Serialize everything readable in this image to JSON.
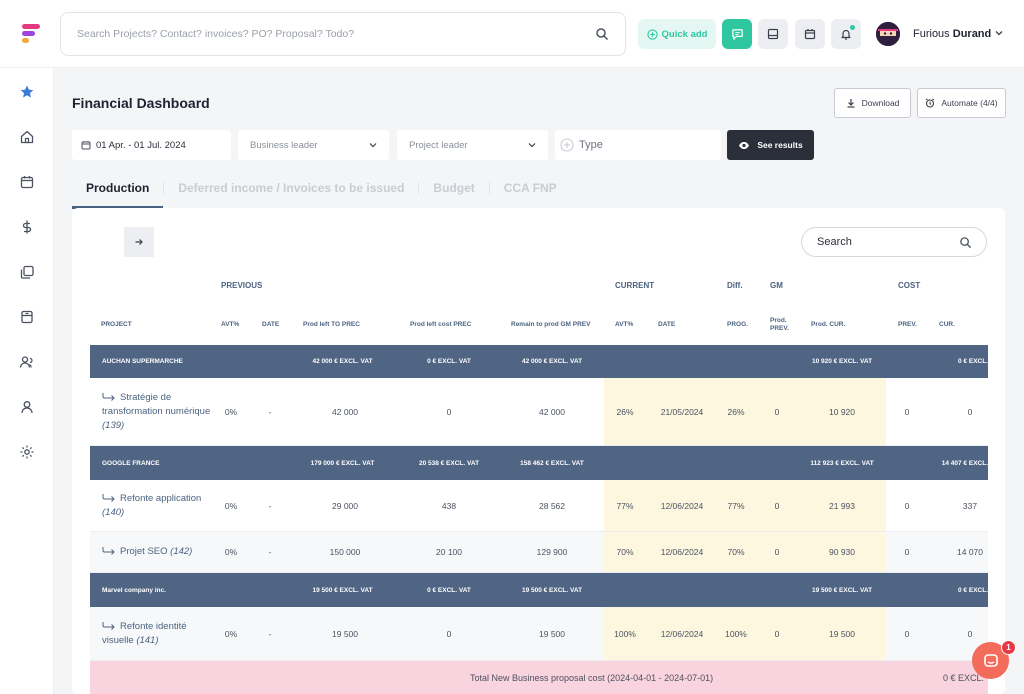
{
  "header": {
    "search_placeholder": "Search Projects? Contact? invoices? PO? Proposal? Todo?",
    "quick_add": "Quick add",
    "user_first": "Furious ",
    "user_last": "Durand"
  },
  "page": {
    "title": "Financial Dashboard",
    "download": "Download",
    "automate": "Automate (4/4)"
  },
  "filters": {
    "date_range": "01 Apr. - 01 Jul. 2024",
    "business_leader": "Business leader",
    "project_leader": "Project leader",
    "type": "Type",
    "see_results": "See results"
  },
  "tabs": [
    "Production",
    "Deferred income / Invoices to be issued",
    "Budget",
    "CCA FNP"
  ],
  "card": {
    "search_label": "Search"
  },
  "table": {
    "groups": {
      "previous": "PREVIOUS",
      "current": "CURRENT",
      "diff": "Diff.",
      "gm": "GM",
      "cost": "COST"
    },
    "columns": {
      "project": "PROJECT",
      "avt_prev": "AVT%",
      "date_prev": "DATE",
      "prod_left_to_prec": "Prod left TO PREC",
      "prod_left_cost_prec": "Prod left cost PREC",
      "remain_to_prod": "Remain to prod GM PREV",
      "avt_cur": "AVT%",
      "date_cur": "DATE",
      "prog": "PROG.",
      "prod_prev": "Prod.\nPREV.",
      "prod_cur": "Prod. CUR.",
      "cost_prev": "PREV.",
      "cost_cur": "CUR."
    },
    "rows": [
      {
        "kind": "group",
        "name": "AUCHAN SUPERMARCHE",
        "c1": "42 000 € EXCL. VAT",
        "c2": "0 € EXCL. VAT",
        "c3": "42 000 € EXCL. VAT",
        "c4": "10 920 € EXCL. VAT",
        "c5": "0 € EXCL."
      },
      {
        "kind": "item",
        "name": "Stratégie de transformation numérique",
        "id": "(139)",
        "avt_prev": "0%",
        "date_prev": "-",
        "to_prec": "42 000",
        "cost_prec": "0",
        "remain": "42 000",
        "avt_cur": "26%",
        "date_cur": "21/05/2024",
        "prog": "26%",
        "prod_prev": "0",
        "prod_cur": "10 920",
        "cost_prev": "0",
        "cost_cur": "0"
      },
      {
        "kind": "group",
        "name": "GOOGLE FRANCE",
        "c1": "179 000 € EXCL. VAT",
        "c2": "20 538 € EXCL. VAT",
        "c3": "158 462 € EXCL. VAT",
        "c4": "112 923 € EXCL. VAT",
        "c5": "14 407 € EXCL."
      },
      {
        "kind": "item",
        "name": "Refonte application",
        "id": "(140)",
        "avt_prev": "0%",
        "date_prev": "-",
        "to_prec": "29 000",
        "cost_prec": "438",
        "remain": "28 562",
        "avt_cur": "77%",
        "date_cur": "12/06/2024",
        "prog": "77%",
        "prod_prev": "0",
        "prod_cur": "21 993",
        "cost_prev": "0",
        "cost_cur": "337"
      },
      {
        "kind": "item",
        "name": "Projet SEO",
        "id": "(142)",
        "avt_prev": "0%",
        "date_prev": "-",
        "to_prec": "150 000",
        "cost_prec": "20 100",
        "remain": "129 900",
        "avt_cur": "70%",
        "date_cur": "12/06/2024",
        "prog": "70%",
        "prod_prev": "0",
        "prod_cur": "90 930",
        "cost_prev": "0",
        "cost_cur": "14 070"
      },
      {
        "kind": "group",
        "name": "Marvel company inc.",
        "c1": "19 500 € EXCL. VAT",
        "c2": "0 € EXCL. VAT",
        "c3": "19 500 € EXCL. VAT",
        "c4": "19 500 € EXCL. VAT",
        "c5": "0 € EXCL."
      },
      {
        "kind": "item",
        "name": "Refonte identité visuelle",
        "id": "(141)",
        "avt_prev": "0%",
        "date_prev": "-",
        "to_prec": "19 500",
        "cost_prec": "0",
        "remain": "19 500",
        "avt_cur": "100%",
        "date_cur": "12/06/2024",
        "prog": "100%",
        "prod_prev": "0",
        "prod_cur": "19 500",
        "cost_prev": "0",
        "cost_cur": "0"
      }
    ],
    "total_label": "Total New Business proposal cost (2024-04-01 - 2024-07-01)",
    "total_value": "0 € EXCL."
  },
  "chat": {
    "badge": "1"
  },
  "colors": {
    "accent": "#2fc7a0",
    "group_row": "#506584",
    "highlight": "#fdf7e0",
    "total_row": "#f9d3dd",
    "chat": "#f26b5b"
  }
}
